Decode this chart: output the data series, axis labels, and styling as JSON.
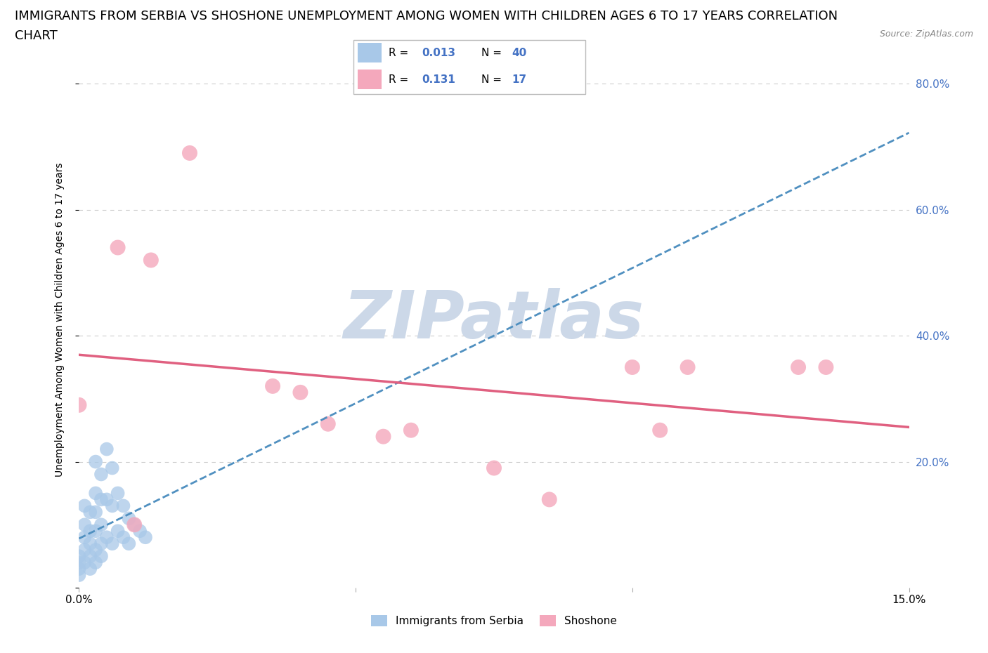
{
  "title_line1": "IMMIGRANTS FROM SERBIA VS SHOSHONE UNEMPLOYMENT AMONG WOMEN WITH CHILDREN AGES 6 TO 17 YEARS CORRELATION",
  "title_line2": "CHART",
  "source": "Source: ZipAtlas.com",
  "ylabel": "Unemployment Among Women with Children Ages 6 to 17 years",
  "xlim": [
    0.0,
    0.15
  ],
  "ylim": [
    0.0,
    0.85
  ],
  "xticks": [
    0.0,
    0.05,
    0.1,
    0.15
  ],
  "xticklabels": [
    "0.0%",
    "",
    "",
    "15.0%"
  ],
  "ytick_positions": [
    0.0,
    0.2,
    0.4,
    0.6,
    0.8
  ],
  "ytick_labels_right": [
    "",
    "20.0%",
    "40.0%",
    "60.0%",
    "80.0%"
  ],
  "serbia_R": "0.013",
  "serbia_N": "40",
  "shoshone_R": "0.131",
  "shoshone_N": "17",
  "serbia_color": "#a8c8e8",
  "shoshone_color": "#f4a8bc",
  "serbia_line_color": "#5090c0",
  "shoshone_line_color": "#e06080",
  "serbia_x": [
    0.0,
    0.0,
    0.0,
    0.0,
    0.001,
    0.001,
    0.001,
    0.001,
    0.001,
    0.002,
    0.002,
    0.002,
    0.002,
    0.002,
    0.003,
    0.003,
    0.003,
    0.003,
    0.003,
    0.003,
    0.004,
    0.004,
    0.004,
    0.004,
    0.004,
    0.005,
    0.005,
    0.005,
    0.006,
    0.006,
    0.006,
    0.007,
    0.007,
    0.008,
    0.008,
    0.009,
    0.009,
    0.01,
    0.011,
    0.012
  ],
  "serbia_y": [
    0.05,
    0.04,
    0.03,
    0.02,
    0.13,
    0.1,
    0.08,
    0.06,
    0.04,
    0.12,
    0.09,
    0.07,
    0.05,
    0.03,
    0.2,
    0.15,
    0.12,
    0.09,
    0.06,
    0.04,
    0.18,
    0.14,
    0.1,
    0.07,
    0.05,
    0.22,
    0.14,
    0.08,
    0.19,
    0.13,
    0.07,
    0.15,
    0.09,
    0.13,
    0.08,
    0.11,
    0.07,
    0.1,
    0.09,
    0.08
  ],
  "shoshone_x": [
    0.0,
    0.007,
    0.01,
    0.013,
    0.02,
    0.035,
    0.04,
    0.045,
    0.055,
    0.06,
    0.075,
    0.085,
    0.1,
    0.105,
    0.11,
    0.13,
    0.135
  ],
  "shoshone_y": [
    0.29,
    0.54,
    0.1,
    0.52,
    0.69,
    0.32,
    0.31,
    0.26,
    0.24,
    0.25,
    0.19,
    0.14,
    0.35,
    0.25,
    0.35,
    0.35,
    0.35
  ],
  "legend_label_serbia": "Immigrants from Serbia",
  "legend_label_shoshone": "Shoshone",
  "watermark_text": "ZIPatlas",
  "watermark_color": "#ccd8e8",
  "grid_color": "#cccccc",
  "right_tick_color": "#4472c4",
  "title_fontsize": 13,
  "axis_label_fontsize": 10,
  "tick_fontsize": 11,
  "legend_fontsize": 11
}
